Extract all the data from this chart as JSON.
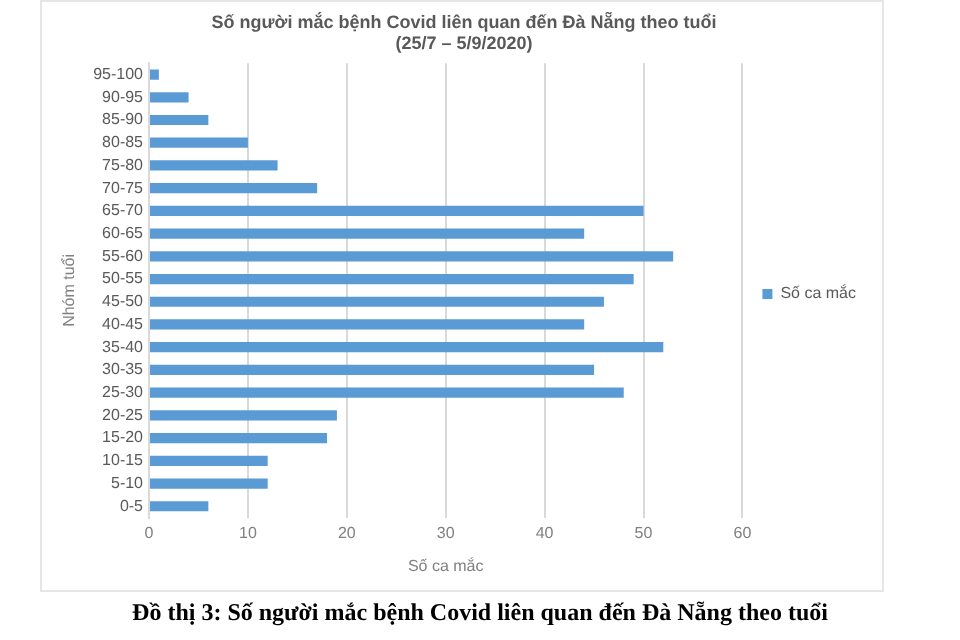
{
  "chart_data": {
    "type": "bar",
    "orientation": "horizontal",
    "title": "Số người mắc bệnh Covid liên quan đến Đà Nẵng theo tuổi",
    "subtitle": "(25/7 – 5/9/2020)",
    "xlabel": "Số ca mắc",
    "ylabel": "Nhóm tuổi",
    "categories": [
      "95-100",
      "90-95",
      "85-90",
      "80-85",
      "75-80",
      "70-75",
      "65-70",
      "60-65",
      "55-60",
      "50-55",
      "45-50",
      "40-45",
      "35-40",
      "30-35",
      "25-30",
      "20-25",
      "15-20",
      "10-15",
      "5-10",
      "0-5"
    ],
    "series": [
      {
        "name": "Số ca mắc",
        "color": "#5b9bd5",
        "values": [
          1,
          4,
          6,
          10,
          13,
          17,
          50,
          44,
          53,
          49,
          46,
          44,
          52,
          45,
          48,
          19,
          18,
          12,
          12,
          6
        ]
      }
    ],
    "xlim": [
      0,
      60
    ],
    "xticks": [
      0,
      10,
      20,
      30,
      40,
      50,
      60
    ],
    "grid": "x",
    "legend": "right",
    "annotations": [
      "Đồ thị 3: Số người mắc bệnh Covid liên quan đến Đà Nẵng theo tuổi"
    ]
  }
}
